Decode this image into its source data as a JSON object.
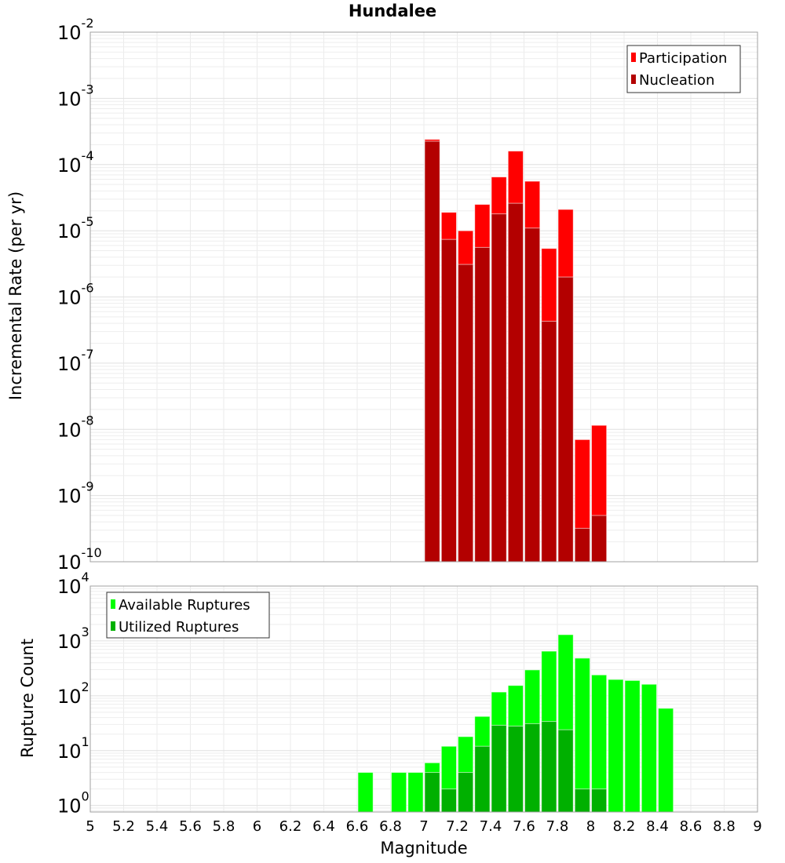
{
  "chart_data": [
    {
      "type": "bar",
      "title": "Hundalee",
      "xlabel": "Magnitude",
      "ylabel": "Incremental Rate (per yr)",
      "yscale": "log",
      "xlim": [
        5,
        9
      ],
      "ylim": [
        1e-10,
        0.01
      ],
      "y_tick_exponents": [
        -10,
        -9,
        -8,
        -7,
        -6,
        -5,
        -4,
        -3,
        -2
      ],
      "grid": true,
      "legend_position": "top-right",
      "x": [
        7.05,
        7.15,
        7.25,
        7.35,
        7.45,
        7.55,
        7.65,
        7.75,
        7.85,
        7.95,
        8.05
      ],
      "series": [
        {
          "name": "Participation",
          "color": "#ff0000",
          "values": [
            0.00024,
            1.9e-05,
            1e-05,
            2.5e-05,
            6.5e-05,
            0.00016,
            5.6e-05,
            5.4e-06,
            2.1e-05,
            7e-09,
            1.15e-08
          ]
        },
        {
          "name": "Nucleation",
          "color": "#b30000",
          "values": [
            0.000225,
            7.4e-06,
            3.1e-06,
            5.6e-06,
            1.8e-05,
            2.6e-05,
            1.1e-05,
            4.3e-07,
            2e-06,
            3.2e-10,
            5e-10
          ]
        }
      ]
    },
    {
      "type": "bar",
      "xlabel": "Magnitude",
      "ylabel": "Rupture Count",
      "yscale": "log",
      "xlim": [
        5,
        9
      ],
      "ylim": [
        0.76,
        10000
      ],
      "y_tick_exponents": [
        0,
        1,
        2,
        3,
        4
      ],
      "x_ticks": [
        "5",
        "5.2",
        "5.4",
        "5.6",
        "5.8",
        "6",
        "6.2",
        "6.4",
        "6.6",
        "6.8",
        "7",
        "7.2",
        "7.4",
        "7.6",
        "7.8",
        "8",
        "8.2",
        "8.4",
        "8.6",
        "8.8",
        "9"
      ],
      "grid": true,
      "legend_position": "top-left",
      "x": [
        6.65,
        6.85,
        6.95,
        7.05,
        7.15,
        7.25,
        7.35,
        7.45,
        7.55,
        7.65,
        7.75,
        7.85,
        7.95,
        8.05,
        8.15,
        8.25,
        8.35,
        8.45
      ],
      "series": [
        {
          "name": "Available Ruptures",
          "color": "#00ff00",
          "values": [
            4,
            4,
            4,
            6,
            12,
            18,
            42,
            117,
            154,
            296,
            650,
            1300,
            485,
            240,
            198,
            190,
            162,
            59
          ]
        },
        {
          "name": "Utilized Ruptures",
          "color": "#00b000",
          "values": [
            0,
            0,
            0,
            4,
            2,
            4,
            12,
            29,
            28,
            31,
            34,
            24,
            2,
            2,
            0,
            0,
            0,
            0
          ]
        }
      ]
    }
  ]
}
